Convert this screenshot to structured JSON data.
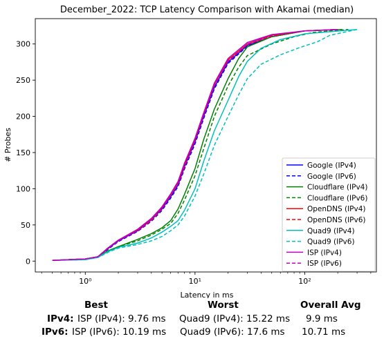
{
  "chart_data": {
    "type": "line",
    "title": "December_2022: TCP Latency Comparison with Akamai (median)",
    "xlabel": "Latency in ms",
    "ylabel": "# Probes",
    "xscale": "log",
    "xlim": [
      0.35,
      450
    ],
    "ylim": [
      -15,
      335
    ],
    "yticks": [
      0,
      50,
      100,
      150,
      200,
      250,
      300
    ],
    "xticks": [
      1,
      10,
      100
    ],
    "xtick_labels": [
      "10⁰",
      "10¹",
      "10²"
    ],
    "legend_position": "lower right",
    "series": [
      {
        "name": "Google (IPv4)",
        "color": "#0000ff",
        "dash": "solid",
        "points": [
          [
            0.5,
            1
          ],
          [
            1.0,
            3
          ],
          [
            1.3,
            6
          ],
          [
            1.6,
            17
          ],
          [
            2,
            28
          ],
          [
            3,
            42
          ],
          [
            4,
            57
          ],
          [
            5,
            72
          ],
          [
            6,
            89
          ],
          [
            7,
            105
          ],
          [
            8,
            130
          ],
          [
            10,
            165
          ],
          [
            12,
            200
          ],
          [
            15,
            240
          ],
          [
            20,
            275
          ],
          [
            30,
            298
          ],
          [
            50,
            310
          ],
          [
            100,
            318
          ],
          [
            200,
            320
          ]
        ]
      },
      {
        "name": "Google (IPv6)",
        "color": "#0000ff",
        "dash": "dashed",
        "points": [
          [
            0.5,
            1
          ],
          [
            1.0,
            3
          ],
          [
            1.3,
            6
          ],
          [
            1.6,
            16
          ],
          [
            2,
            27
          ],
          [
            3,
            41
          ],
          [
            4,
            55
          ],
          [
            5,
            70
          ],
          [
            6,
            87
          ],
          [
            7,
            103
          ],
          [
            8,
            127
          ],
          [
            10,
            162
          ],
          [
            12,
            197
          ],
          [
            15,
            238
          ],
          [
            20,
            273
          ],
          [
            30,
            297
          ],
          [
            50,
            310
          ],
          [
            100,
            318
          ],
          [
            200,
            320
          ]
        ]
      },
      {
        "name": "Cloudflare (IPv4)",
        "color": "#008000",
        "dash": "solid",
        "points": [
          [
            0.5,
            1
          ],
          [
            1.0,
            3
          ],
          [
            1.3,
            6
          ],
          [
            1.6,
            14
          ],
          [
            2,
            20
          ],
          [
            3,
            30
          ],
          [
            4,
            38
          ],
          [
            5,
            46
          ],
          [
            6,
            56
          ],
          [
            7,
            72
          ],
          [
            8,
            92
          ],
          [
            10,
            128
          ],
          [
            12,
            168
          ],
          [
            15,
            210
          ],
          [
            20,
            252
          ],
          [
            25,
            280
          ],
          [
            30,
            296
          ],
          [
            50,
            310
          ],
          [
            100,
            318
          ],
          [
            220,
            320
          ]
        ]
      },
      {
        "name": "Cloudflare (IPv6)",
        "color": "#008000",
        "dash": "dashed",
        "points": [
          [
            0.5,
            1
          ],
          [
            1.0,
            3
          ],
          [
            1.3,
            6
          ],
          [
            1.6,
            14
          ],
          [
            2,
            20
          ],
          [
            3,
            28
          ],
          [
            4,
            36
          ],
          [
            5,
            44
          ],
          [
            6,
            52
          ],
          [
            7,
            66
          ],
          [
            8,
            84
          ],
          [
            10,
            118
          ],
          [
            12,
            155
          ],
          [
            15,
            200
          ],
          [
            20,
            242
          ],
          [
            25,
            268
          ],
          [
            30,
            284
          ],
          [
            50,
            300
          ],
          [
            80,
            310
          ],
          [
            120,
            316
          ],
          [
            250,
            320
          ]
        ]
      },
      {
        "name": "OpenDNS (IPv4)",
        "color": "#ff0000",
        "dash": "solid",
        "points": [
          [
            0.5,
            1
          ],
          [
            1.0,
            3
          ],
          [
            1.3,
            6
          ],
          [
            1.6,
            18
          ],
          [
            2,
            29
          ],
          [
            3,
            43
          ],
          [
            4,
            58
          ],
          [
            5,
            74
          ],
          [
            6,
            92
          ],
          [
            7,
            108
          ],
          [
            8,
            133
          ],
          [
            10,
            168
          ],
          [
            12,
            203
          ],
          [
            15,
            244
          ],
          [
            20,
            278
          ],
          [
            30,
            300
          ],
          [
            50,
            312
          ],
          [
            100,
            318
          ],
          [
            200,
            320
          ]
        ]
      },
      {
        "name": "OpenDNS (IPv6)",
        "color": "#ff0000",
        "dash": "dashed",
        "points": [
          [
            0.5,
            1
          ],
          [
            1.0,
            3
          ],
          [
            1.3,
            6
          ],
          [
            1.6,
            17
          ],
          [
            2,
            28
          ],
          [
            3,
            42
          ],
          [
            4,
            56
          ],
          [
            5,
            72
          ],
          [
            6,
            90
          ],
          [
            7,
            106
          ],
          [
            8,
            130
          ],
          [
            10,
            166
          ],
          [
            12,
            201
          ],
          [
            15,
            242
          ],
          [
            20,
            276
          ],
          [
            30,
            299
          ],
          [
            50,
            311
          ],
          [
            100,
            318
          ],
          [
            200,
            320
          ]
        ]
      },
      {
        "name": "Quad9 (IPv4)",
        "color": "#00bfbf",
        "dash": "solid",
        "points": [
          [
            0.5,
            1
          ],
          [
            1.0,
            2
          ],
          [
            1.3,
            5
          ],
          [
            1.6,
            13
          ],
          [
            2,
            19
          ],
          [
            3,
            25
          ],
          [
            4,
            32
          ],
          [
            5,
            40
          ],
          [
            6,
            48
          ],
          [
            7,
            56
          ],
          [
            8,
            70
          ],
          [
            10,
            100
          ],
          [
            12,
            138
          ],
          [
            15,
            180
          ],
          [
            20,
            222
          ],
          [
            25,
            255
          ],
          [
            30,
            276
          ],
          [
            40,
            294
          ],
          [
            60,
            306
          ],
          [
            100,
            314
          ],
          [
            300,
            320
          ]
        ]
      },
      {
        "name": "Quad9 (IPv6)",
        "color": "#00bfbf",
        "dash": "dashed",
        "points": [
          [
            0.5,
            1
          ],
          [
            1.0,
            2
          ],
          [
            1.3,
            5
          ],
          [
            1.6,
            12
          ],
          [
            2,
            18
          ],
          [
            3,
            23
          ],
          [
            4,
            28
          ],
          [
            5,
            34
          ],
          [
            6,
            42
          ],
          [
            7,
            50
          ],
          [
            8,
            62
          ],
          [
            10,
            90
          ],
          [
            12,
            120
          ],
          [
            15,
            160
          ],
          [
            20,
            200
          ],
          [
            25,
            230
          ],
          [
            30,
            252
          ],
          [
            40,
            272
          ],
          [
            60,
            285
          ],
          [
            90,
            295
          ],
          [
            130,
            303
          ],
          [
            170,
            312
          ],
          [
            300,
            320
          ]
        ]
      },
      {
        "name": "ISP (IPv4)",
        "color": "#bf00bf",
        "dash": "solid",
        "points": [
          [
            0.5,
            1
          ],
          [
            1.0,
            3
          ],
          [
            1.3,
            6
          ],
          [
            1.6,
            18
          ],
          [
            2,
            29
          ],
          [
            3,
            44
          ],
          [
            4,
            59
          ],
          [
            5,
            75
          ],
          [
            6,
            93
          ],
          [
            7,
            110
          ],
          [
            8,
            135
          ],
          [
            10,
            170
          ],
          [
            12,
            205
          ],
          [
            15,
            246
          ],
          [
            20,
            280
          ],
          [
            30,
            302
          ],
          [
            50,
            313
          ],
          [
            100,
            318
          ],
          [
            200,
            320
          ]
        ]
      },
      {
        "name": "ISP (IPv6)",
        "color": "#bf00bf",
        "dash": "dashed",
        "points": [
          [
            0.5,
            1
          ],
          [
            1.0,
            3
          ],
          [
            1.3,
            6
          ],
          [
            1.6,
            17
          ],
          [
            2,
            28
          ],
          [
            3,
            42
          ],
          [
            4,
            57
          ],
          [
            5,
            73
          ],
          [
            6,
            91
          ],
          [
            7,
            107
          ],
          [
            8,
            132
          ],
          [
            10,
            167
          ],
          [
            12,
            202
          ],
          [
            15,
            243
          ],
          [
            20,
            277
          ],
          [
            30,
            300
          ],
          [
            50,
            312
          ],
          [
            100,
            318
          ],
          [
            200,
            320
          ]
        ]
      }
    ]
  },
  "summary": {
    "headers": {
      "best": "Best",
      "worst": "Worst",
      "avg": "Overall Avg"
    },
    "rows": [
      {
        "label": "IPv4:",
        "best": "ISP (IPv4): 9.76 ms",
        "worst": "Quad9 (IPv4): 15.22 ms",
        "avg": "9.9 ms"
      },
      {
        "label": "IPv6:",
        "best": "ISP (IPv6): 10.19 ms",
        "worst": "Quad9 (IPv6): 17.6 ms",
        "avg": "10.71 ms"
      }
    ]
  }
}
